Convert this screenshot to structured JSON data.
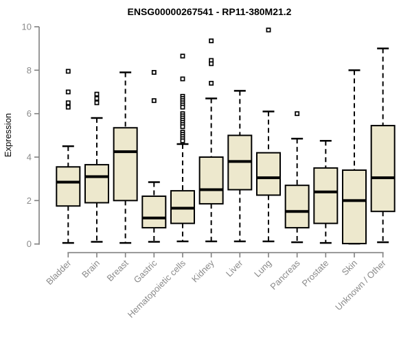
{
  "chart_data": {
    "type": "boxplot",
    "title": "ENSG00000267541 - RP11-380M21.2",
    "ylabel": "Expression",
    "xlabel": "",
    "ylim": [
      0,
      10
    ],
    "yticks": [
      0,
      2,
      4,
      6,
      8,
      10
    ],
    "grid": false,
    "categories": [
      "Bladder",
      "Brain",
      "Breast",
      "Gastric",
      "Hematopoietic cells",
      "Kidney",
      "Liver",
      "Lung",
      "Pancreas",
      "Prostate",
      "Skin",
      "Unknown / Other"
    ],
    "boxes": [
      {
        "category": "Bladder",
        "whislo": 0.05,
        "q1": 1.75,
        "med": 2.85,
        "q3": 3.55,
        "whishi": 4.5,
        "outliers": [
          7.95,
          7.0,
          6.5,
          6.3
        ]
      },
      {
        "category": "Brain",
        "whislo": 0.1,
        "q1": 1.9,
        "med": 3.1,
        "q3": 3.65,
        "whishi": 5.8,
        "outliers": [
          6.9,
          6.7,
          6.5
        ]
      },
      {
        "category": "Breast",
        "whislo": 0.05,
        "q1": 2.0,
        "med": 4.25,
        "q3": 5.35,
        "whishi": 7.9,
        "outliers": []
      },
      {
        "category": "Gastric",
        "whislo": 0.1,
        "q1": 0.75,
        "med": 1.2,
        "q3": 2.2,
        "whishi": 2.85,
        "outliers": [
          7.9,
          6.6
        ]
      },
      {
        "category": "Hematopoietic cells",
        "whislo": 0.12,
        "q1": 0.95,
        "med": 1.65,
        "q3": 2.45,
        "whishi": 4.6,
        "outliers": [
          8.65,
          7.6,
          6.8,
          6.7,
          6.6,
          6.5,
          6.4,
          6.3,
          6.0,
          5.9,
          5.8,
          5.7,
          5.6,
          5.5,
          5.4,
          5.15,
          5.05,
          4.95,
          4.85,
          4.75
        ]
      },
      {
        "category": "Kidney",
        "whislo": 0.12,
        "q1": 1.85,
        "med": 2.5,
        "q3": 4.0,
        "whishi": 6.7,
        "outliers": [
          9.35,
          8.45,
          8.3,
          7.4
        ]
      },
      {
        "category": "Liver",
        "whislo": 0.12,
        "q1": 2.5,
        "med": 3.8,
        "q3": 5.0,
        "whishi": 7.05,
        "outliers": []
      },
      {
        "category": "Lung",
        "whislo": 0.12,
        "q1": 2.25,
        "med": 3.05,
        "q3": 4.2,
        "whishi": 6.1,
        "outliers": [
          9.85
        ]
      },
      {
        "category": "Pancreas",
        "whislo": 0.08,
        "q1": 0.75,
        "med": 1.5,
        "q3": 2.7,
        "whishi": 4.85,
        "outliers": [
          6.0
        ]
      },
      {
        "category": "Prostate",
        "whislo": 0.05,
        "q1": 0.95,
        "med": 2.4,
        "q3": 3.5,
        "whishi": 4.75,
        "outliers": []
      },
      {
        "category": "Skin",
        "whislo": 0.02,
        "q1": 0.02,
        "med": 2.0,
        "q3": 3.4,
        "whishi": 8.0,
        "outliers": []
      },
      {
        "category": "Unknown / Other",
        "whislo": 0.08,
        "q1": 1.5,
        "med": 3.05,
        "q3": 5.45,
        "whishi": 9.0,
        "outliers": []
      }
    ],
    "colors": {
      "box_fill": "#EDE8CD",
      "box_border": "#000000",
      "median": "#000000",
      "whisker": "#000000",
      "outlier": "#000000",
      "axis": "#7F7F7F",
      "tick_label": "#8A8A8A",
      "title": "#000000"
    }
  }
}
